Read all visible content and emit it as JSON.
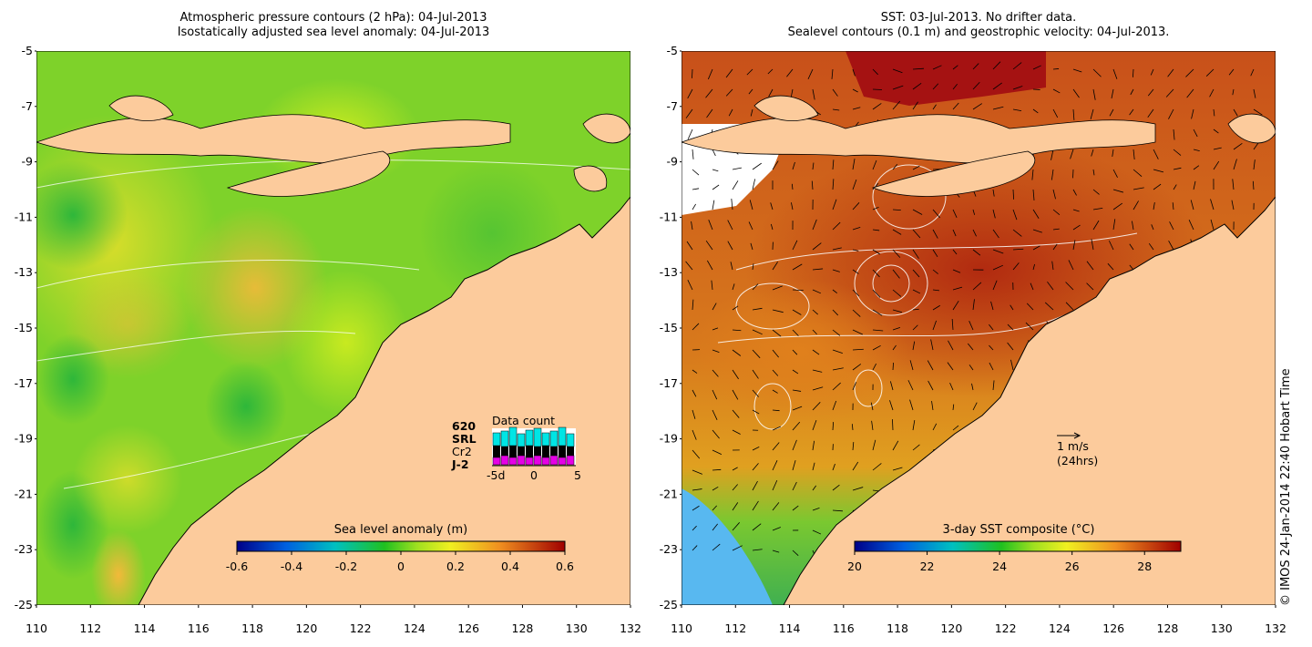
{
  "left_panel": {
    "title_line1": "Atmospheric pressure contours (2 hPa): 04-Jul-2013",
    "title_line2": "Isostatically adjusted sea level anomaly: 04-Jul-2013",
    "colorbar": {
      "title": "Sea level anomaly (m)",
      "ticks": [
        "-0.6",
        "-0.4",
        "-0.2",
        "0",
        "0.2",
        "0.4",
        "0.6"
      ],
      "range": [
        -0.6,
        0.6
      ]
    },
    "data_count": {
      "title": "Data count",
      "satellites": [
        "620",
        "SRL",
        "Cr2",
        "J-2"
      ],
      "satellite_colors": [
        "#000000",
        "#00e5e5",
        "#000000",
        "#e600e6"
      ],
      "axis_labels": [
        "-5d",
        "0",
        "5"
      ]
    }
  },
  "right_panel": {
    "title_line1": "SST: 03-Jul-2013. No drifter data.",
    "title_line2": "Sealevel contours (0.1 m) and geostrophic velocity: 04-Jul-2013.",
    "colorbar": {
      "title": "3-day SST composite (°C)",
      "ticks": [
        "20",
        "22",
        "24",
        "26",
        "28"
      ],
      "range": [
        20,
        29
      ]
    },
    "velocity_scale": {
      "label": "1 m/s",
      "sublabel": "(24hrs)"
    }
  },
  "axes": {
    "y_labels": [
      "-5",
      "-7",
      "-9",
      "-11",
      "-13",
      "-15",
      "-17",
      "-19",
      "-21",
      "-23",
      "-25"
    ],
    "x_labels": [
      "110",
      "112",
      "114",
      "116",
      "118",
      "120",
      "122",
      "124",
      "126",
      "128",
      "130",
      "132"
    ]
  },
  "copyright": "© IMOS 24-Jan-2014 22:40 Hobart Time",
  "colors": {
    "land": "#fccb9c",
    "sea_low": "#3ec63e",
    "sea_mid": "#9ee51f",
    "sea_high": "#e8e625",
    "sst_warm": "#c24a12",
    "sst_hot": "#a31010",
    "sst_cool": "#58b8f0"
  }
}
